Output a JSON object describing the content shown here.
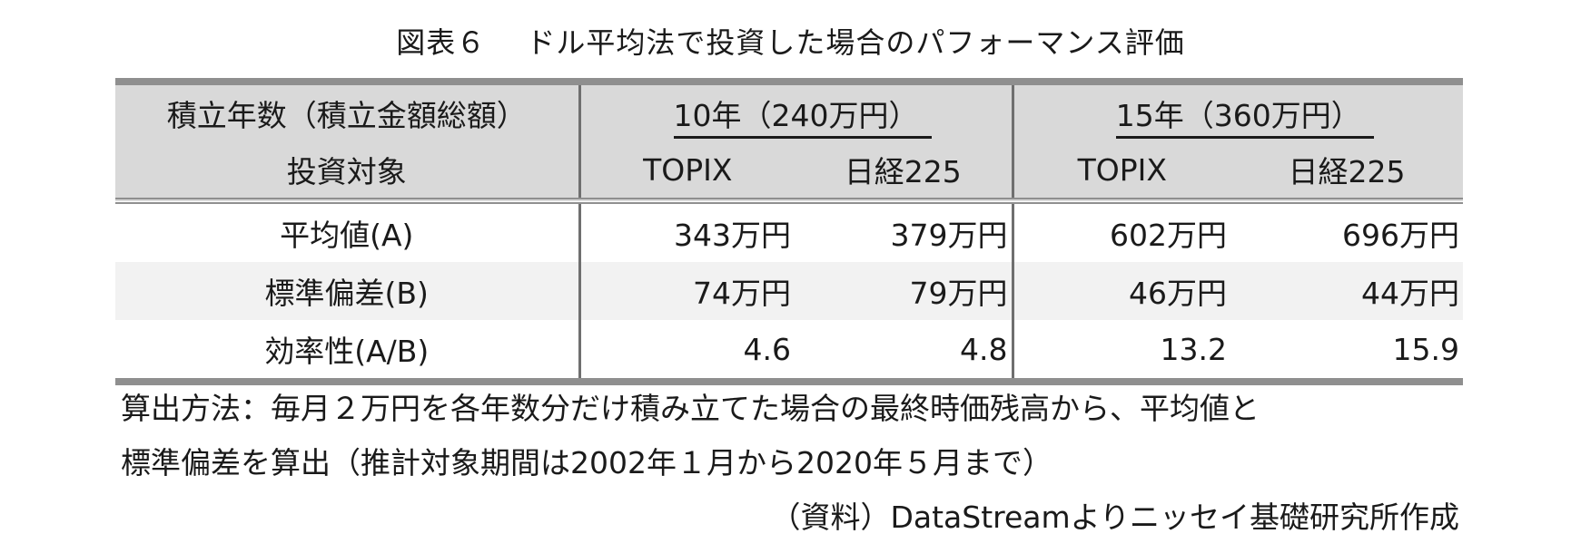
{
  "title": "図表６　 ドル平均法で投資した場合のパフォーマンス評価",
  "table": {
    "header": {
      "row_label_1": "積立年数（積立金額総額）",
      "row_label_2": "投資対象",
      "groups": [
        "10年（240万円）",
        "15年（360万円）"
      ],
      "columns": [
        "TOPIX",
        "日経225",
        "TOPIX",
        "日経225"
      ]
    },
    "rows": [
      {
        "label": "平均値(A)",
        "values": [
          "343万円",
          "379万円",
          "602万円",
          "696万円"
        ]
      },
      {
        "label": "標準偏差(B)",
        "values": [
          "74万円",
          "79万円",
          "46万円",
          "44万円"
        ]
      },
      {
        "label": "効率性(A/B)",
        "values": [
          "4.6",
          "4.8",
          "13.2",
          "15.9"
        ]
      }
    ]
  },
  "note_line1": "算出方法：毎月２万円を各年数分だけ積み立てた場合の最終時価残高から、平均値と",
  "note_line2": "標準偏差を算出（推計対象期間は2002年１月から2020年５月まで）",
  "source": "（資料）DataStreamよりニッセイ基礎研究所作成"
}
